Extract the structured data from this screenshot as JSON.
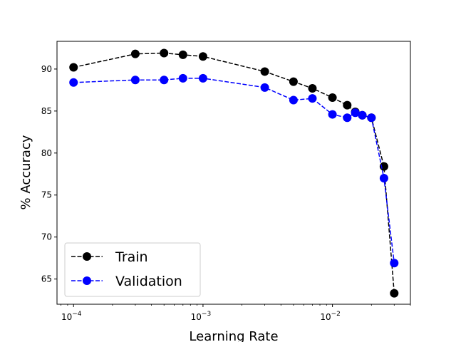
{
  "chart_data": {
    "type": "line",
    "title": "",
    "xlabel": "Learning Rate",
    "ylabel": "% Accuracy",
    "xscale": "log",
    "xlim": [
      7.45e-05,
      0.04
    ],
    "ylim": [
      62,
      93.3
    ],
    "grid": false,
    "legend_position": "lower-left",
    "x_ticks": [
      {
        "value": 0.0001,
        "base": "10",
        "exp": "−4"
      },
      {
        "value": 0.001,
        "base": "10",
        "exp": "−3"
      },
      {
        "value": 0.01,
        "base": "10",
        "exp": "−2"
      }
    ],
    "y_ticks": [
      65,
      70,
      75,
      80,
      85,
      90
    ],
    "series": [
      {
        "name": "Train",
        "color": "#000000",
        "marker": "circle",
        "line_style": "dashed",
        "x": [
          0.0001,
          0.0003,
          0.0005,
          0.0007,
          0.001,
          0.003,
          0.005,
          0.007,
          0.01,
          0.013,
          0.015,
          0.017,
          0.02,
          0.025,
          0.03
        ],
        "y": [
          90.2,
          91.8,
          91.9,
          91.7,
          91.5,
          89.7,
          88.5,
          87.7,
          86.6,
          85.7,
          84.9,
          84.5,
          84.2,
          78.4,
          63.3
        ]
      },
      {
        "name": "Validation",
        "color": "#0000ff",
        "marker": "circle",
        "line_style": "dashed",
        "x": [
          0.0001,
          0.0003,
          0.0005,
          0.0007,
          0.001,
          0.003,
          0.005,
          0.007,
          0.01,
          0.013,
          0.015,
          0.017,
          0.02,
          0.025,
          0.03
        ],
        "y": [
          88.4,
          88.7,
          88.7,
          88.9,
          88.9,
          87.8,
          86.3,
          86.5,
          84.6,
          84.2,
          84.8,
          84.5,
          84.2,
          77.0,
          66.9
        ]
      }
    ]
  }
}
